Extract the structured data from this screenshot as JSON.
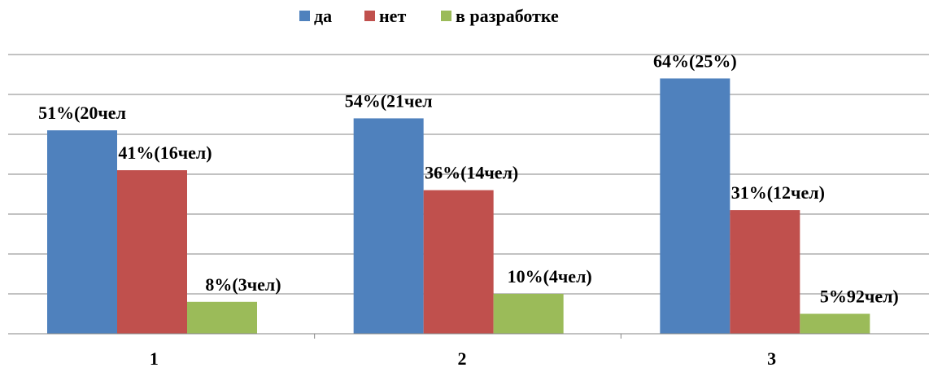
{
  "chart_data": {
    "type": "bar",
    "title": "",
    "xlabel": "",
    "ylabel": "",
    "ylim": [
      0,
      70
    ],
    "grid": true,
    "legend_position": "top-center",
    "categories": [
      "1",
      "2",
      "3"
    ],
    "series": [
      {
        "name": "да",
        "color": "#4F81BD",
        "values": [
          51,
          54,
          64
        ],
        "labels": [
          "51%(20чел",
          "54%(21чел",
          "64%(25%)"
        ]
      },
      {
        "name": "нет",
        "color": "#C0504D",
        "values": [
          41,
          36,
          31
        ],
        "labels": [
          "41%(16чел)",
          "36%(14чел)",
          "31%(12чел)"
        ]
      },
      {
        "name": "в разработке",
        "color": "#9BBB59",
        "values": [
          8,
          10,
          5
        ],
        "labels": [
          "8%(3чел)",
          "10%(4чел)",
          "5%92чел)"
        ]
      }
    ]
  }
}
